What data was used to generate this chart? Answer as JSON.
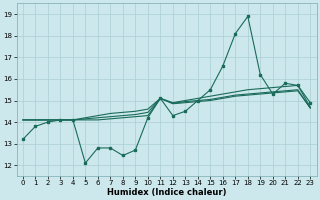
{
  "xlabel": "Humidex (Indice chaleur)",
  "xlim": [
    -0.5,
    23.5
  ],
  "ylim": [
    11.5,
    19.5
  ],
  "xticks": [
    0,
    1,
    2,
    3,
    4,
    5,
    6,
    7,
    8,
    9,
    10,
    11,
    12,
    13,
    14,
    15,
    16,
    17,
    18,
    19,
    20,
    21,
    22,
    23
  ],
  "yticks": [
    12,
    13,
    14,
    15,
    16,
    17,
    18,
    19
  ],
  "background_color": "#cce8ec",
  "grid_color": "#aacdd4",
  "line_color": "#1a6b5a",
  "line_main": [
    13.2,
    13.8,
    14.0,
    14.1,
    14.1,
    12.1,
    12.8,
    12.8,
    12.45,
    12.7,
    14.2,
    15.1,
    14.3,
    14.5,
    15.0,
    15.5,
    16.6,
    18.1,
    18.9,
    16.2,
    15.3,
    15.8,
    15.7,
    14.9
  ],
  "line_a": [
    14.1,
    14.1,
    14.1,
    14.1,
    14.1,
    14.1,
    14.1,
    14.15,
    14.2,
    14.25,
    14.3,
    15.1,
    14.85,
    14.9,
    14.95,
    15.0,
    15.1,
    15.2,
    15.25,
    15.3,
    15.35,
    15.4,
    15.45,
    14.65
  ],
  "line_b": [
    14.1,
    14.1,
    14.1,
    14.1,
    14.1,
    14.2,
    14.3,
    14.4,
    14.45,
    14.5,
    14.6,
    15.1,
    14.9,
    15.0,
    15.1,
    15.2,
    15.3,
    15.4,
    15.5,
    15.55,
    15.6,
    15.65,
    15.7,
    14.7
  ],
  "line_c": [
    14.1,
    14.1,
    14.1,
    14.1,
    14.1,
    14.15,
    14.2,
    14.25,
    14.3,
    14.35,
    14.45,
    15.1,
    14.87,
    14.95,
    15.0,
    15.05,
    15.15,
    15.25,
    15.3,
    15.35,
    15.4,
    15.45,
    15.5,
    14.65
  ]
}
